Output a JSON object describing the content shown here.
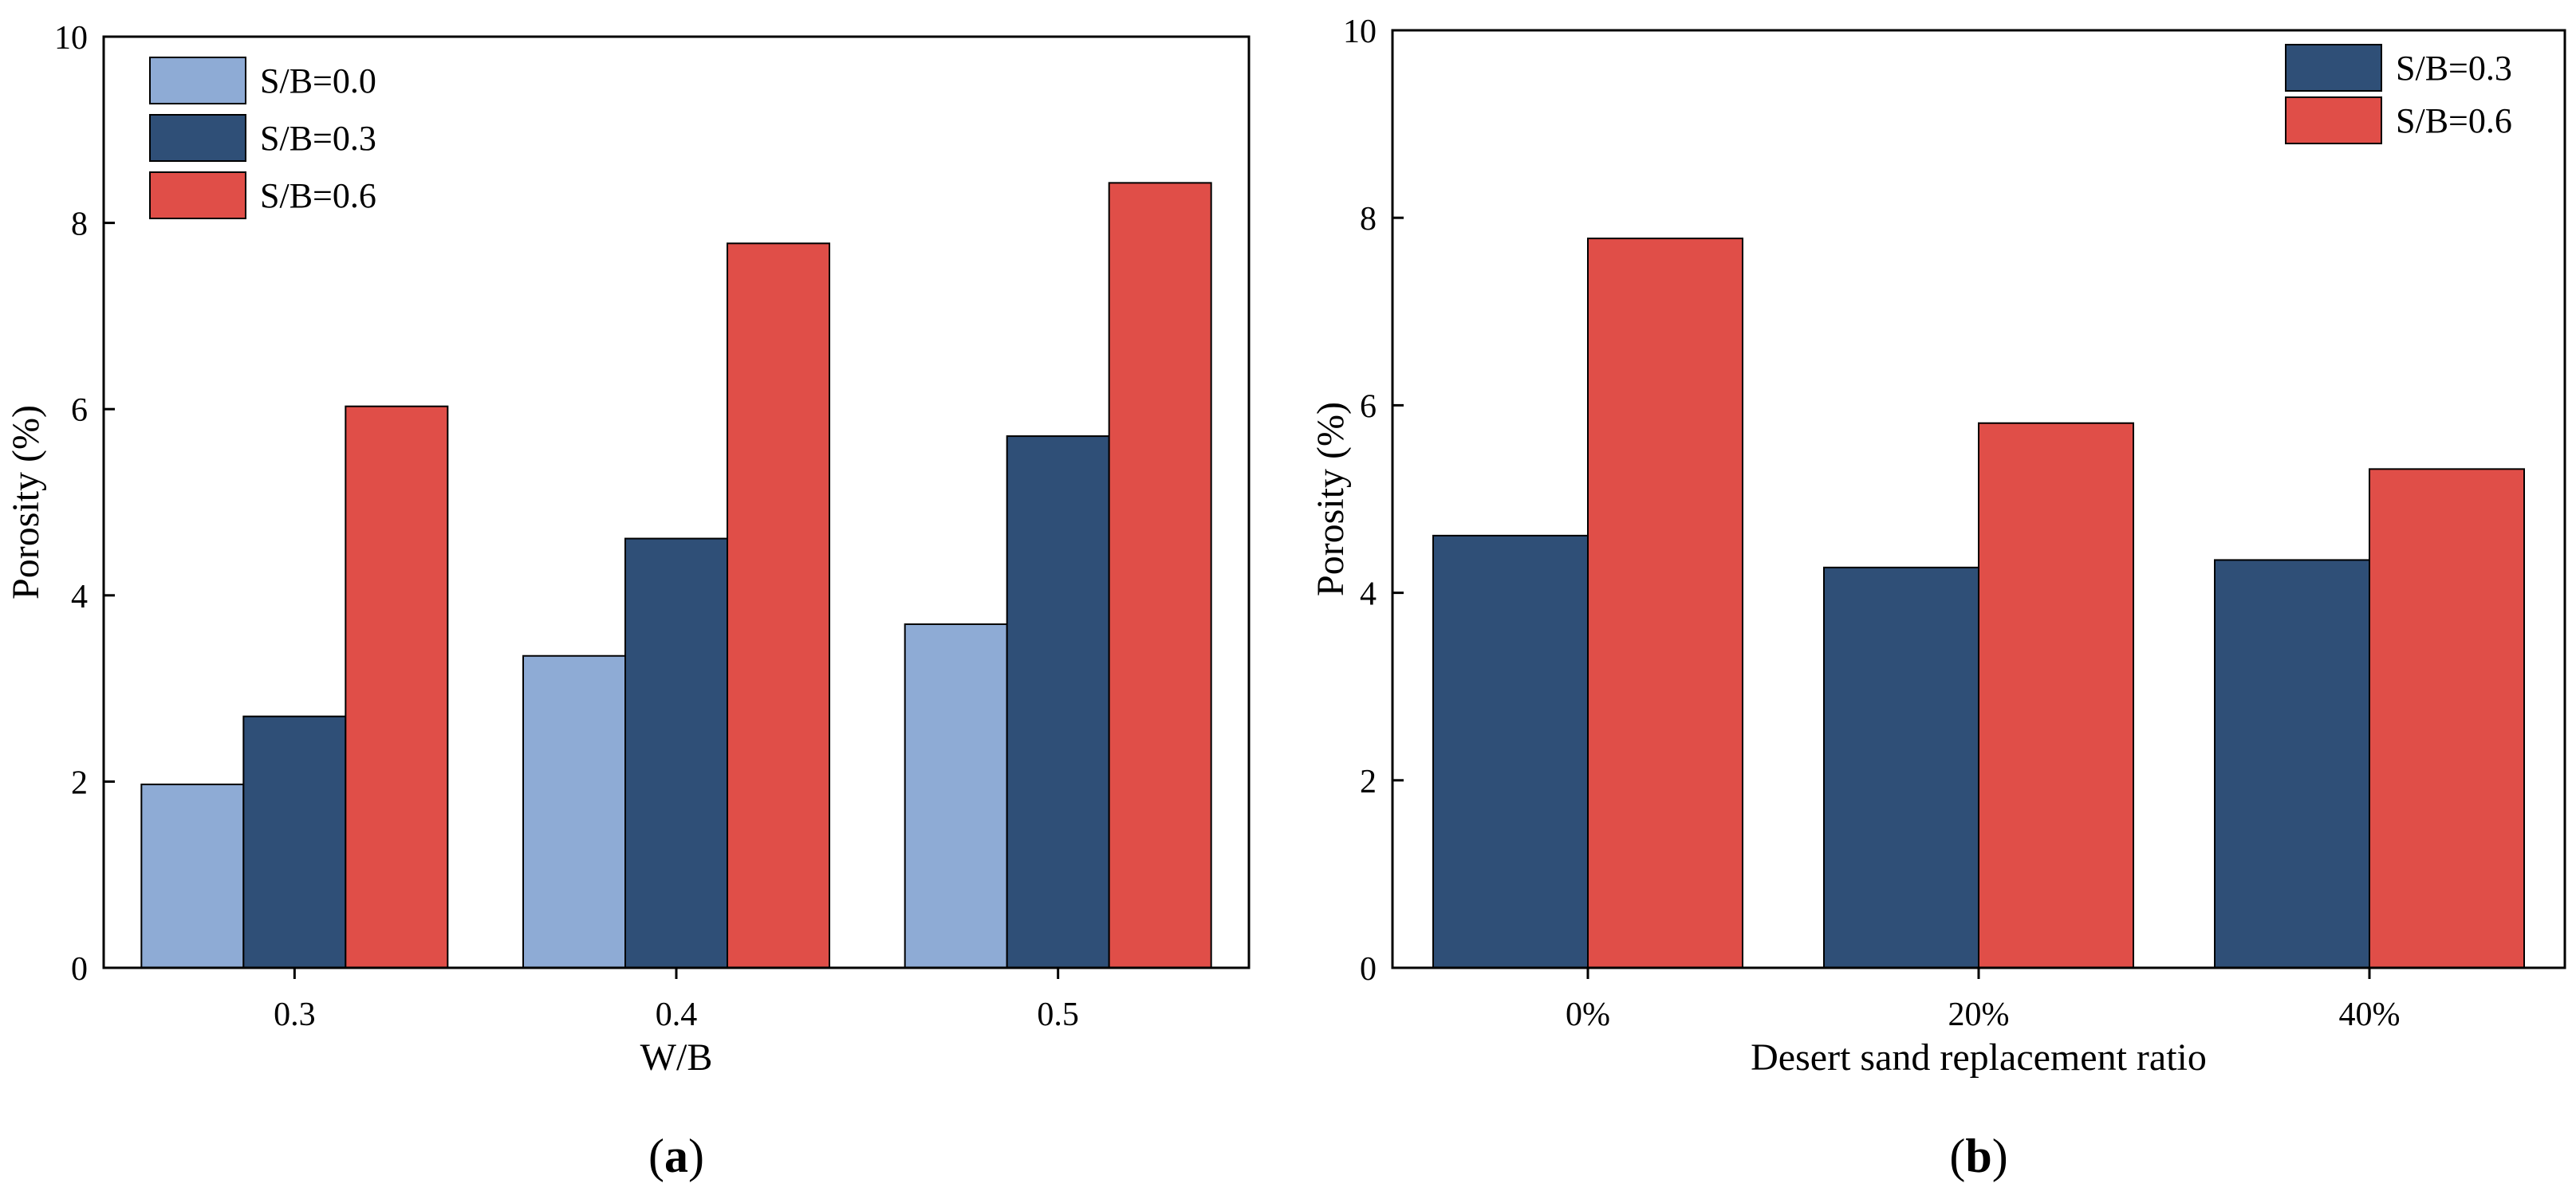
{
  "chart_data": [
    {
      "type": "bar",
      "panel_label": "a",
      "categories": [
        "0.3",
        "0.4",
        "0.5"
      ],
      "series": [
        {
          "name": "S/B=0.0",
          "values": [
            1.97,
            3.35,
            3.69
          ],
          "color": "#8eabd5"
        },
        {
          "name": "S/B=0.3",
          "values": [
            2.7,
            4.61,
            5.71
          ],
          "color": "#2f4f77"
        },
        {
          "name": "S/B=0.6",
          "values": [
            6.03,
            7.78,
            8.43
          ],
          "color": "#e04e48"
        }
      ],
      "xlabel": "W/B",
      "ylabel": "Porosity (%)",
      "ylim": [
        0,
        10
      ],
      "yticks": [
        0,
        2,
        4,
        6,
        8,
        10
      ],
      "legend_position": "top-left",
      "grid": false
    },
    {
      "type": "bar",
      "panel_label": "b",
      "categories": [
        "0%",
        "20%",
        "40%"
      ],
      "series": [
        {
          "name": "S/B=0.3",
          "values": [
            4.61,
            4.27,
            4.35
          ],
          "color": "#2f4f77"
        },
        {
          "name": "S/B=0.6",
          "values": [
            7.78,
            5.81,
            5.32
          ],
          "color": "#e04e48"
        }
      ],
      "xlabel": "Desert sand replacement ratio",
      "ylabel": "Porosity (%)",
      "ylim": [
        0,
        10
      ],
      "yticks": [
        0,
        2,
        4,
        6,
        8,
        10
      ],
      "legend_position": "top-right",
      "grid": false
    }
  ]
}
